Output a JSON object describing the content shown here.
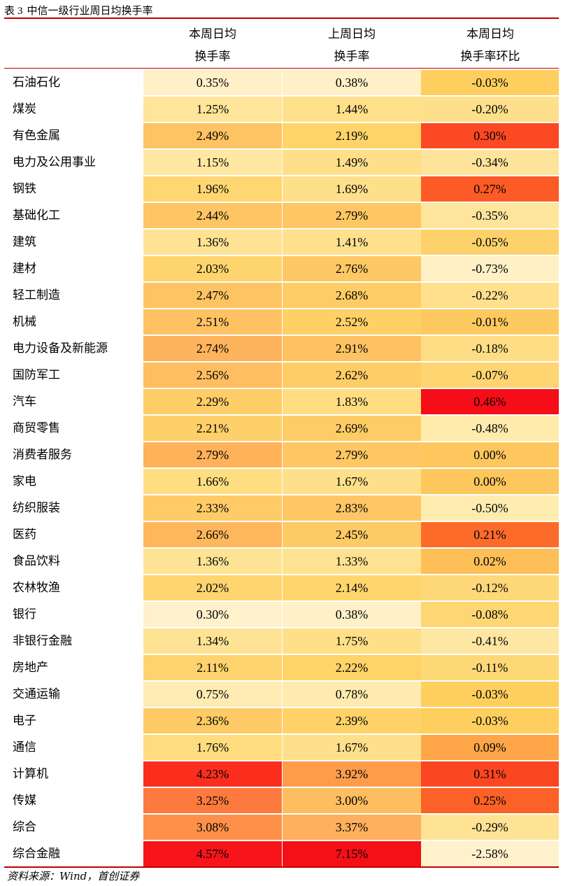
{
  "caption": {
    "label": "表",
    "number": "3",
    "title": "中信一级行业周日均换手率"
  },
  "header": {
    "col1_line1": "本周日均",
    "col1_line2": "换手率",
    "col2_line1": "上周日均",
    "col2_line2": "换手率",
    "col3_line1": "本周日均",
    "col3_line2": "换手率环比"
  },
  "rows": [
    {
      "name": "石油石化",
      "this_week": "0.35%",
      "last_week": "0.38%",
      "change": "-0.03%",
      "colors": [
        "#fff0c8",
        "#fff0c8",
        "#fecf5e"
      ]
    },
    {
      "name": "煤炭",
      "this_week": "1.25%",
      "last_week": "1.44%",
      "change": "-0.20%",
      "colors": [
        "#ffe59a",
        "#ffe08b",
        "#fee08c"
      ]
    },
    {
      "name": "有色金属",
      "this_week": "2.49%",
      "last_week": "2.19%",
      "change": "0.30%",
      "colors": [
        "#fec362",
        "#fed469",
        "#fb4924"
      ]
    },
    {
      "name": "电力及公用事业",
      "this_week": "1.15%",
      "last_week": "1.49%",
      "change": "-0.34%",
      "colors": [
        "#ffe8a1",
        "#ffdf89",
        "#fee49a"
      ]
    },
    {
      "name": "钢铁",
      "this_week": "1.96%",
      "last_week": "1.69%",
      "change": "0.27%",
      "colors": [
        "#fed772",
        "#ffe08a",
        "#fc5a26"
      ]
    },
    {
      "name": "基础化工",
      "this_week": "2.44%",
      "last_week": "2.79%",
      "change": "-0.35%",
      "colors": [
        "#fec564",
        "#fec764",
        "#fee59c"
      ]
    },
    {
      "name": "建筑",
      "this_week": "1.36%",
      "last_week": "1.41%",
      "change": "-0.05%",
      "colors": [
        "#ffe394",
        "#ffe08d",
        "#fed26b"
      ]
    },
    {
      "name": "建材",
      "this_week": "2.03%",
      "last_week": "2.76%",
      "change": "-0.73%",
      "colors": [
        "#fed46f",
        "#fec865",
        "#fff0c6"
      ]
    },
    {
      "name": "轻工制造",
      "this_week": "2.47%",
      "last_week": "2.68%",
      "change": "-0.22%",
      "colors": [
        "#fec463",
        "#fecc65",
        "#fee08d"
      ]
    },
    {
      "name": "机械",
      "this_week": "2.51%",
      "last_week": "2.52%",
      "change": "-0.01%",
      "colors": [
        "#fec262",
        "#fed066",
        "#fec95f"
      ]
    },
    {
      "name": "电力设备及新能源",
      "this_week": "2.74%",
      "last_week": "2.91%",
      "change": "-0.18%",
      "colors": [
        "#feb45c",
        "#fec263",
        "#fedd84"
      ]
    },
    {
      "name": "国防军工",
      "this_week": "2.56%",
      "last_week": "2.62%",
      "change": "-0.07%",
      "colors": [
        "#febe61",
        "#fecd66",
        "#fed571"
      ]
    },
    {
      "name": "汽车",
      "this_week": "2.29%",
      "last_week": "1.83%",
      "change": "0.46%",
      "colors": [
        "#fecd67",
        "#ffdd80",
        "#f50d18"
      ]
    },
    {
      "name": "商贸零售",
      "this_week": "2.21%",
      "last_week": "2.69%",
      "change": "-0.48%",
      "colors": [
        "#fed06a",
        "#fecc65",
        "#ffebac"
      ]
    },
    {
      "name": "消费者服务",
      "this_week": "2.79%",
      "last_week": "2.79%",
      "change": "0.00%",
      "colors": [
        "#feb25a",
        "#fec764",
        "#fec75e"
      ]
    },
    {
      "name": "家电",
      "this_week": "1.66%",
      "last_week": "1.67%",
      "change": "0.00%",
      "colors": [
        "#ffde82",
        "#ffe08a",
        "#fec75e"
      ]
    },
    {
      "name": "纺织服装",
      "this_week": "2.33%",
      "last_week": "2.83%",
      "change": "-0.50%",
      "colors": [
        "#fecb66",
        "#fec664",
        "#ffecaf"
      ]
    },
    {
      "name": "医药",
      "this_week": "2.66%",
      "last_week": "2.45%",
      "change": "0.21%",
      "colors": [
        "#feb75d",
        "#feca65",
        "#fd6b2b"
      ]
    },
    {
      "name": "食品饮料",
      "this_week": "1.36%",
      "last_week": "1.33%",
      "change": "0.02%",
      "colors": [
        "#ffe394",
        "#ffe291",
        "#febf58"
      ]
    },
    {
      "name": "农林牧渔",
      "this_week": "2.02%",
      "last_week": "2.14%",
      "change": "-0.12%",
      "colors": [
        "#fed56f",
        "#fed66b",
        "#fed878"
      ]
    },
    {
      "name": "银行",
      "this_week": "0.30%",
      "last_week": "0.38%",
      "change": "-0.08%",
      "colors": [
        "#fff1cb",
        "#fff0c8",
        "#fed673"
      ]
    },
    {
      "name": "非银行金融",
      "this_week": "1.34%",
      "last_week": "1.75%",
      "change": "-0.41%",
      "colors": [
        "#ffe395",
        "#ffdf87",
        "#fee7a2"
      ]
    },
    {
      "name": "房地产",
      "this_week": "2.11%",
      "last_week": "2.22%",
      "change": "-0.11%",
      "colors": [
        "#fed26c",
        "#fed368",
        "#fed877"
      ]
    },
    {
      "name": "交通运输",
      "this_week": "0.75%",
      "last_week": "0.78%",
      "change": "-0.03%",
      "colors": [
        "#ffecb3",
        "#ffebb0",
        "#fecf5e"
      ]
    },
    {
      "name": "电子",
      "this_week": "2.36%",
      "last_week": "2.39%",
      "change": "-0.03%",
      "colors": [
        "#feca65",
        "#fed267",
        "#fecf5e"
      ]
    },
    {
      "name": "通信",
      "this_week": "1.76%",
      "last_week": "1.67%",
      "change": "0.09%",
      "colors": [
        "#ffdc7e",
        "#ffe08a",
        "#fea648"
      ]
    },
    {
      "name": "计算机",
      "this_week": "4.23%",
      "last_week": "3.92%",
      "change": "0.31%",
      "colors": [
        "#fb2e1e",
        "#fe9c4c",
        "#fb4622"
      ]
    },
    {
      "name": "传媒",
      "this_week": "3.25%",
      "last_week": "3.00%",
      "change": "0.25%",
      "colors": [
        "#fd7a3f",
        "#febd61",
        "#fc6128"
      ]
    },
    {
      "name": "综合",
      "this_week": "3.08%",
      "last_week": "3.37%",
      "change": "-0.29%",
      "colors": [
        "#fe904a",
        "#feb05c",
        "#fee395"
      ]
    },
    {
      "name": "综合金融",
      "this_week": "4.57%",
      "last_week": "7.15%",
      "change": "-2.58%",
      "colors": [
        "#f7141a",
        "#f50f17",
        "#fff1cb"
      ]
    }
  ],
  "source": "资料来源：Wind，首创证券"
}
